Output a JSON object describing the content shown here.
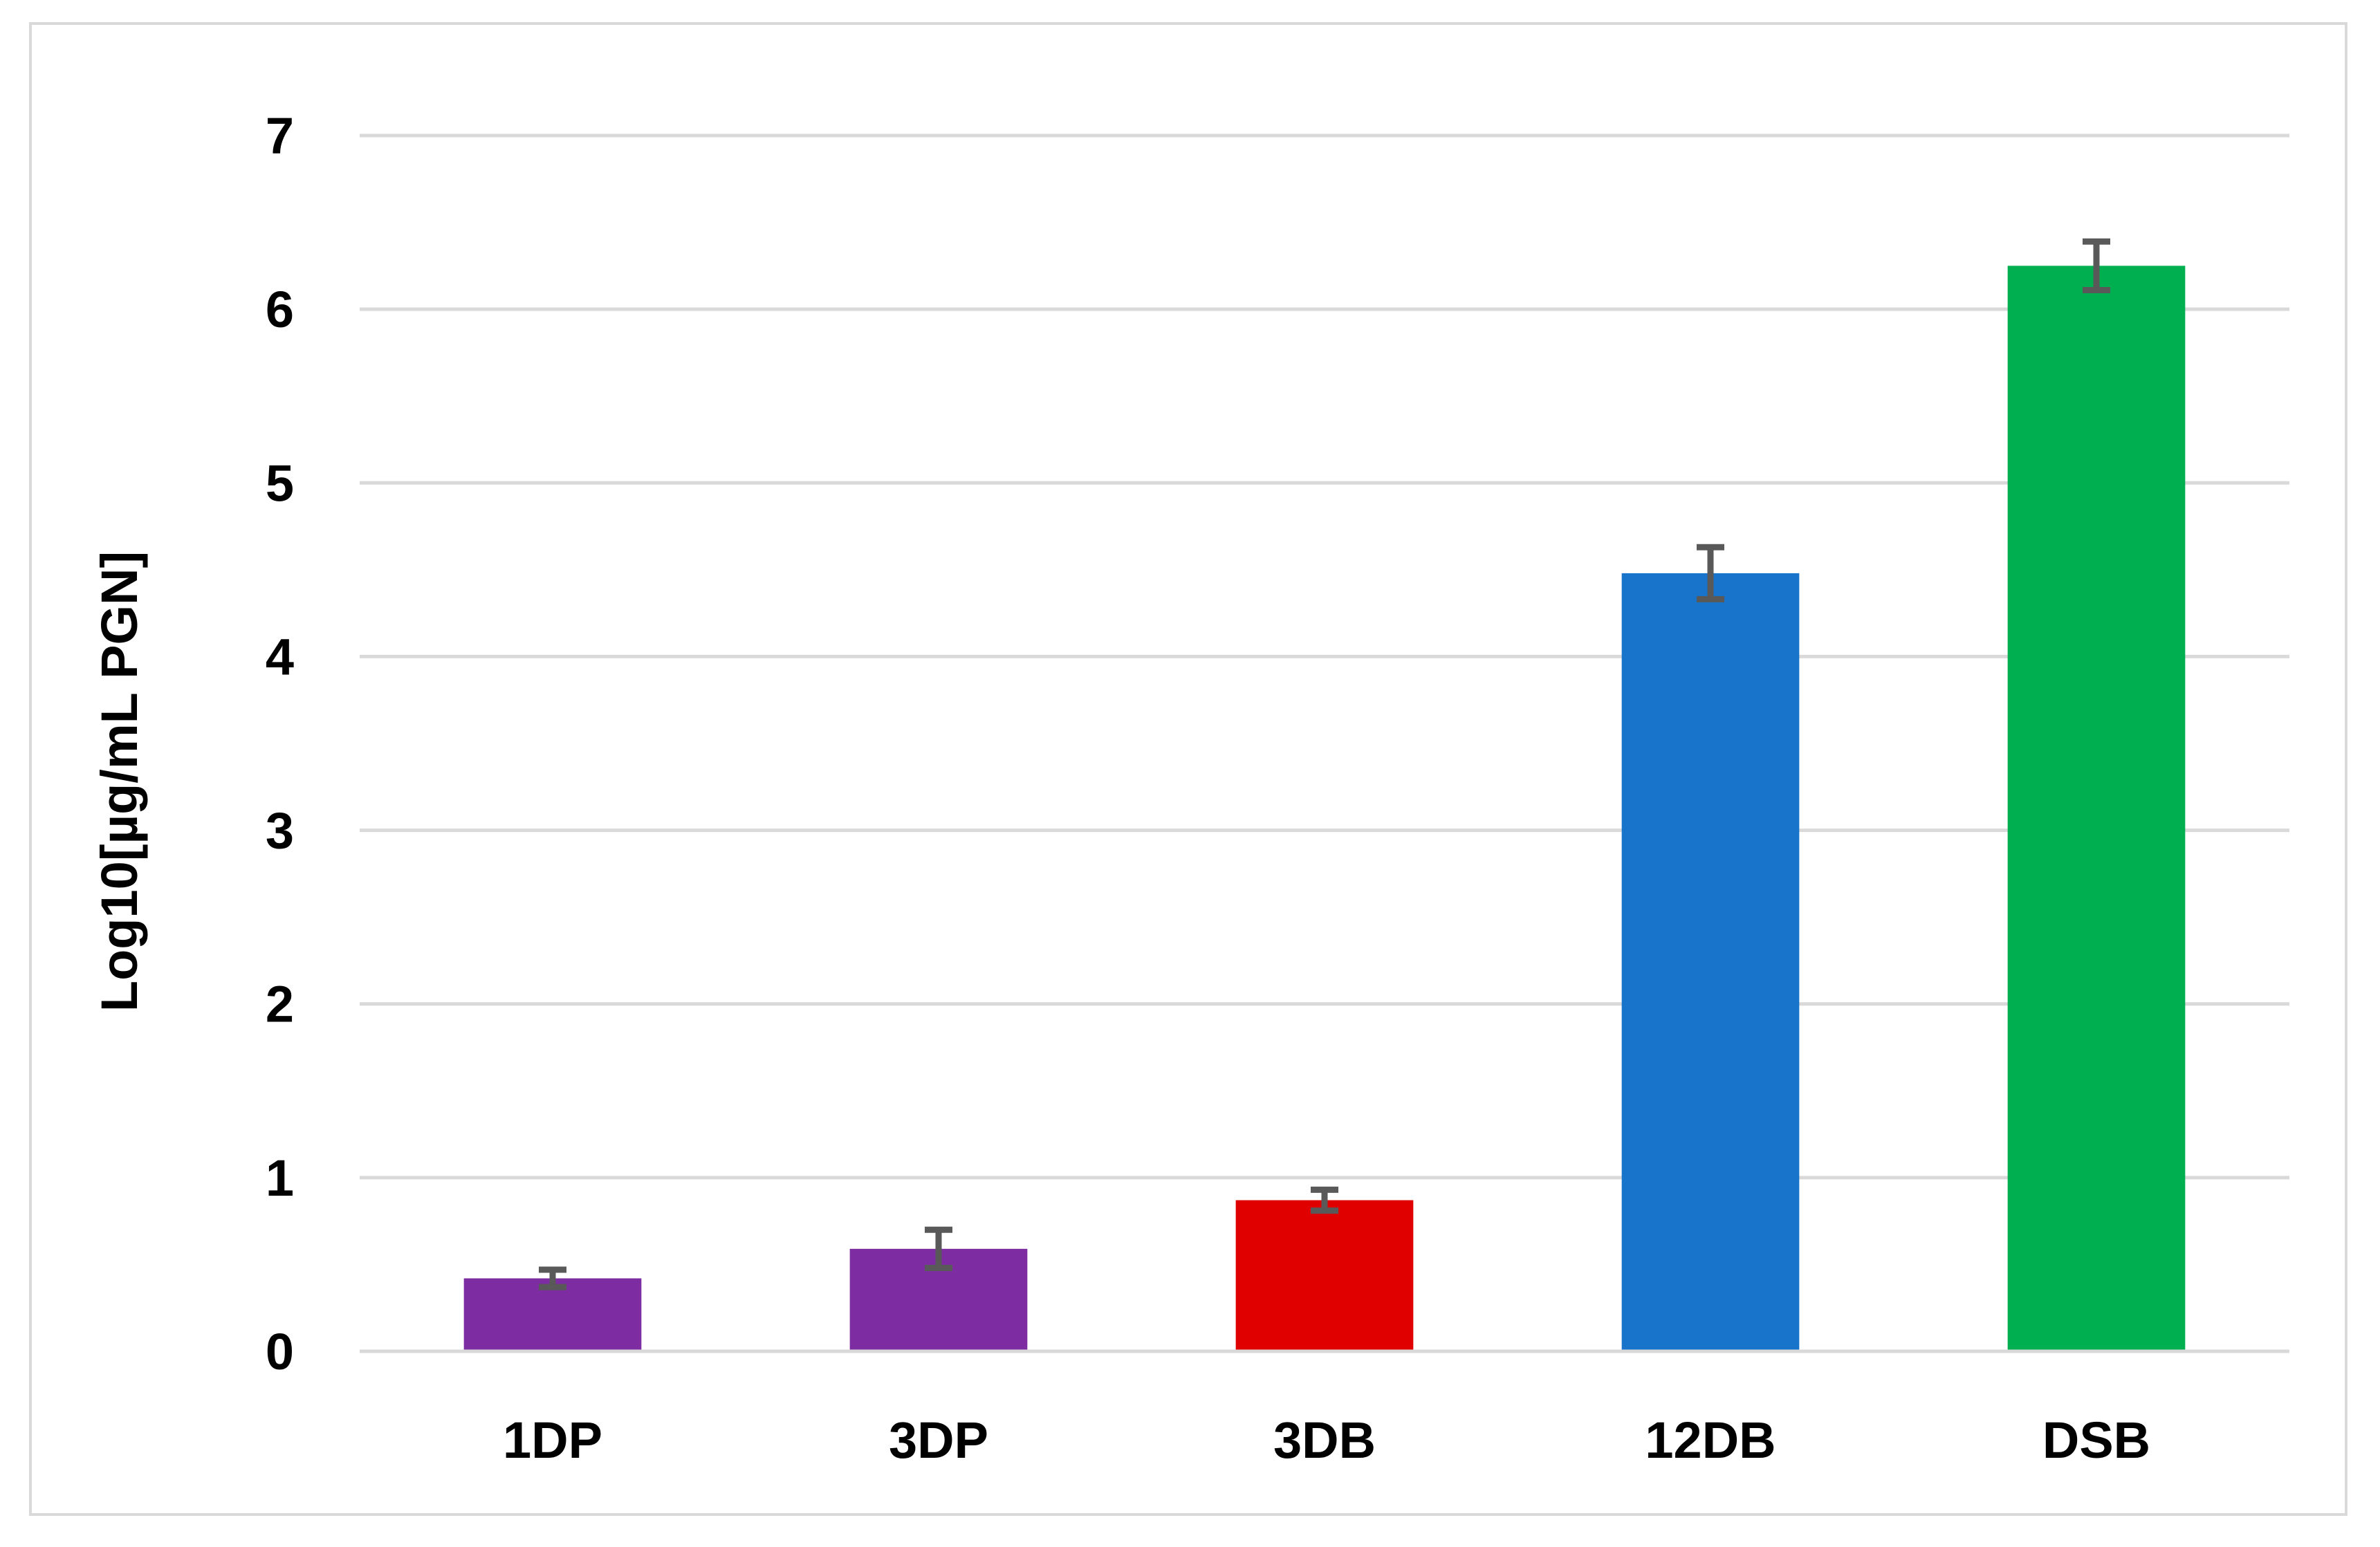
{
  "chart_data": {
    "type": "bar",
    "title": "",
    "xlabel": "",
    "ylabel": "Log10[µg/mL PGN]",
    "categories": [
      "1DP",
      "3DP",
      "3DB",
      "12DB",
      "DSB"
    ],
    "values": [
      0.42,
      0.59,
      0.87,
      4.48,
      6.25
    ],
    "errors": [
      0.05,
      0.11,
      0.06,
      0.15,
      0.14
    ],
    "colors": [
      "#7e2ca2",
      "#7e2ca2",
      "#e00000",
      "#1874cb",
      "#00b050"
    ],
    "error_bar_color": "#595959",
    "ylim": [
      0,
      7
    ],
    "yticks": [
      "0",
      "1",
      "2",
      "3",
      "4",
      "5",
      "6",
      "7"
    ],
    "grid": true,
    "legend": "none"
  }
}
